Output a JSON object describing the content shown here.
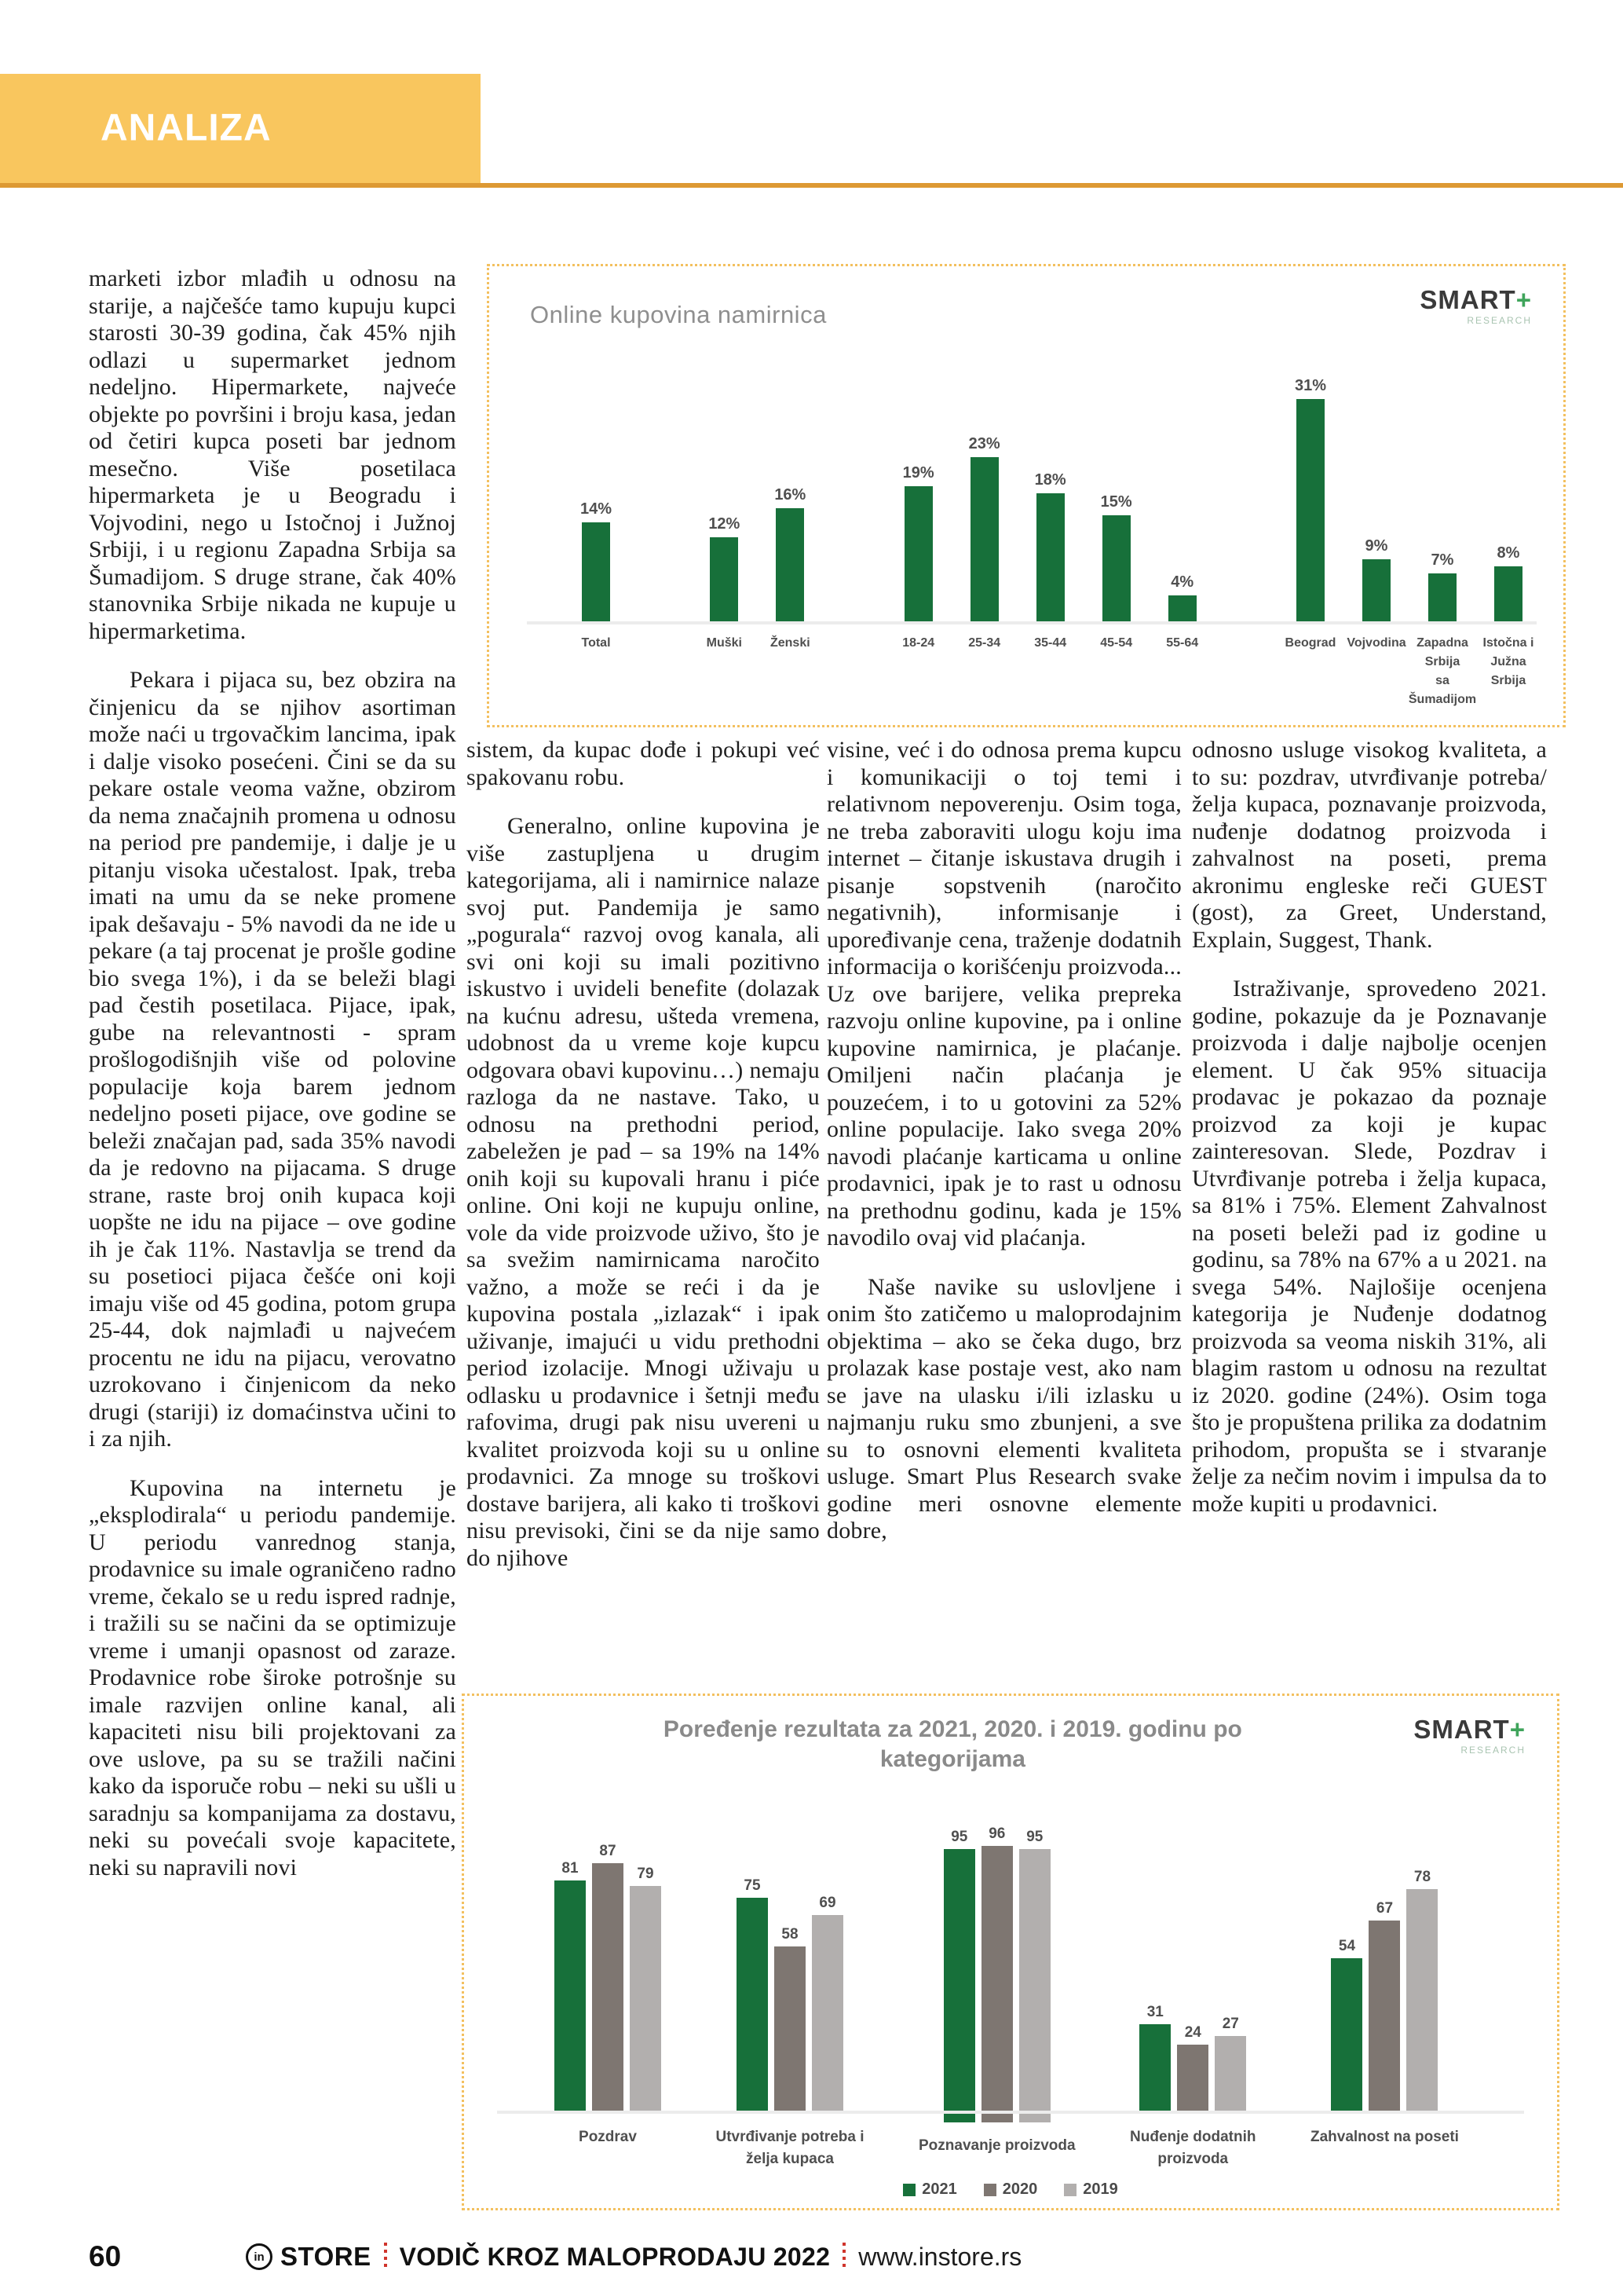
{
  "header": {
    "title": "ANALIZA",
    "band_color": "#F9C65E",
    "rule_color": "#DD9933"
  },
  "article": {
    "columns": {
      "col1": [
        "marketi izbor mlađih u odnosu na starije, a najčešće tamo kupuju kupci starosti 30-39 godina, čak 45% njih odlazi u supermarket jednom nedeljno. Hipermarkete, najveće objekte po površini i broju kasa, jedan od četiri kupca poseti bar jednom mesečno. Više posetilaca hipermarketa je u Beogradu i Vojvodini, nego u Istočnoj i Južnoj Srbiji, i u regionu Zapadna Srbija sa Šumadijom. S druge strane, čak 40% stanovnika Srbije nikada ne kupuje u hipermarketima.",
        "Pekara i pijaca su, bez obzira na činjenicu da se njihov asortiman može naći u trgovačkim lancima, ipak i dalje visoko posećeni. Čini se da su pekare ostale veoma važne, obzirom da nema značajnih promena u odnosu na period pre pandemije, i dalje je u pitanju visoka učestalost. Ipak, treba imati na umu da se neke promene ipak dešavaju - 5% navodi da ne ide u pekare (a taj procenat je prošle godine bio svega 1%), i da se beleži blagi pad čestih posetilaca. Pijace, ipak, gube na relevantnosti - spram prošlogodišnjih više od polovine populacije koja barem jednom nedeljno poseti pijace, ove godine se beleži značajan pad, sada 35% navodi da je redovno na pijacama. S druge strane, raste broj onih kupaca koji uopšte ne idu na pijace – ove godine ih je čak 11%. Nastavlja se trend da su posetioci pijaca češće oni koji imaju više od 45 godina, potom grupa 25-44, dok najmlađi u najvećem procentu ne idu na pijacu, verovatno uzrokovano i činjenicom da neko drugi (stariji) iz domaćinstva učini to i za njih.",
        "Kupovina na internetu je „eksplodirala“ u periodu pandemije. U periodu vanrednog stanja, prodavnice su imale ograničeno radno vreme, čekalo se u redu ispred radnje, i tražili su se načini da se optimizuje vreme i umanji opasnost od zaraze. Prodavnice robe široke potrošnje su imale razvijen online kanal, ali kapaciteti nisu bili projektovani za ove uslove, pa su se tražili načini kako da isporuče robu – neki su ušli u saradnju sa kompanijama za dostavu, neki su povećali svoje kapacitete, neki su napravili novi"
      ],
      "col2": [
        "sistem, da kupac dođe i pokupi već spakovanu robu.",
        "Generalno, online kupovina je više zastupljena u drugim kategorijama, ali i namirnice nalaze svoj put. Pandemija je samo „pogurala“ razvoj ovog kanala, ali svi oni koji su imali pozitivno iskustvo i uvideli benefite (dolazak na kućnu adresu, ušteda vremena, udobnost da u vreme koje kupcu odgovara obavi kupovinu…) nemaju razloga da ne nastave. Tako, u odnosu na prethodni period, zabeležen je pad – sa 19% na 14% onih koji su kupovali hranu i piće online. Oni koji ne kupuju online, vole da vide proizvode uživo, što je sa svežim namirnicama naročito važno, a može se reći i da je kupovina postala „izlazak“ i ipak uživanje, imajući u vidu prethodni period izolacije. Mnogi uživaju u odlasku u prodavnice i šetnji među rafovima, drugi pak nisu uvereni u kvalitet proizvoda koji su u online prodavnici. Za mnoge su troškovi dostave barijera, ali kako ti troškovi nisu previsoki, čini se da nije samo do njihove"
      ],
      "col3": [
        "visine, već i do odnosa prema kupcu i komunikaciji o toj temi i relativnom nepoverenju. Osim toga, ne treba zaboraviti ulogu koju ima internet – čitanje iskustava drugih i pisanje sopstvenih (naročito negativnih), informisanje i upoređivanje cena, traženje dodatnih informacija o korišćenju proizvoda... Uz ove barijere, velika prepreka razvoju online kupovine, pa i online kupovine namirnica, je plaćanje. Omiljeni način plaćanja je pouzećem, i to u gotovini za 52% online populacije. Iako svega 20% navodi plaćanje karticama u online prodavnici, ipak je to rast u odnosu na prethodnu godinu, kada je 15% navodilo ovaj vid plaćanja.",
        "Naše navike su uslovljene i onim što zatičemo u maloprodajnim objektima – ako se čeka dugo, brz prolazak kase postaje vest, ako nam se jave na ulasku i/ili izlasku u najmanju ruku smo zbunjeni, a sve su to osnovni elementi kvaliteta usluge. Smart Plus Research svake godine meri osnovne elemente dobre,"
      ],
      "col4": [
        "odnosno usluge visokog kvaliteta, a to su: pozdrav, utvrđivanje potreba/želja kupaca, poznavanje proizvoda, nuđenje dodatnog proizvoda i zahvalnost na poseti, prema akronimu engleske reči GUEST (gost), za Greet, Understand, Explain, Suggest, Thank.",
        "Istraživanje, sprovedeno 2021. godine, pokazuje da je Poznavanje proizvoda i dalje najbolje ocenjen element. U čak 95% situacija prodavac je pokazao da poznaje proizvod za koji je kupac zainteresovan. Slede, Pozdrav i Utvrđivanje potreba i želja kupaca, sa 81% i 75%. Element Zahvalnost na poseti beleži pad iz godine u godinu, sa 78% na 67% a u 2021. na svega 54%. Najlošije ocenjena kategorija je Nuđenje dodatnog proizvoda sa veoma niskih 31%, ali blagim rastom u odnosu na rezultat iz 2020. godine (24%). Osim toga što je propuštena prilika za dodatnim prihodom, propušta se i stvaranje želje za nečim novim i impulsa da to može kupiti u prodavnici."
      ]
    }
  },
  "chart_data": [
    {
      "type": "bar",
      "title": "Online kupovina namirnica",
      "brand": {
        "name": "SMART",
        "plus": "+",
        "subtitle": "RESEARCH"
      },
      "unit": "%",
      "bar_color": "#17703A",
      "ylim": [
        0,
        35
      ],
      "grid": false,
      "groups": [
        {
          "categories": [
            "Total"
          ],
          "values": [
            14
          ]
        },
        {
          "categories": [
            "Muški",
            "Ženski"
          ],
          "values": [
            12,
            16
          ]
        },
        {
          "categories": [
            "18-24",
            "25-34",
            "35-44",
            "45-54",
            "55-64"
          ],
          "values": [
            19,
            23,
            18,
            15,
            4
          ]
        },
        {
          "categories": [
            "Beograd",
            "Vojvodina",
            "Zapadna\nSrbija\nsa\nŠumadijom",
            "Istočna i\nJužna\nSrbija"
          ],
          "values": [
            31,
            9,
            7,
            8
          ]
        }
      ]
    },
    {
      "type": "bar",
      "title": "Poređenje rezultata za 2021, 2020. i 2019. godinu po kategorijama",
      "brand": {
        "name": "SMART",
        "plus": "+",
        "subtitle": "RESEARCH"
      },
      "ylim": [
        0,
        100
      ],
      "grid": false,
      "legend_position": "bottom",
      "categories": [
        "Pozdrav",
        "Utvrđivanje potreba i\nželja kupaca",
        "Poznavanje proizvoda",
        "Nuđenje dodatnih\nproizvoda",
        "Zahvalnost na poseti"
      ],
      "series": [
        {
          "name": "2021",
          "color": "#17703A",
          "values": [
            81,
            75,
            95,
            31,
            54
          ]
        },
        {
          "name": "2020",
          "color": "#7E7671",
          "values": [
            87,
            58,
            96,
            24,
            67
          ]
        },
        {
          "name": "2019",
          "color": "#B2AFAE",
          "values": [
            79,
            69,
            95,
            27,
            78
          ]
        }
      ]
    }
  ],
  "footer": {
    "page_number": "60",
    "logo_circle": "in",
    "logo_text": "STORE",
    "guide_title": "VODIČ KROZ MALOPRODAJU 2022",
    "website": "www.instore.rs"
  }
}
